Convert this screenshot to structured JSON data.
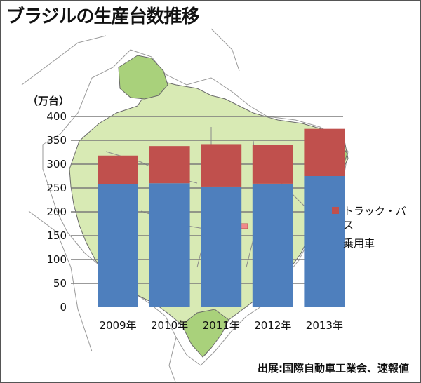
{
  "title": "ブラジルの生産台数推移",
  "source": "出展:国際自動車工業会、速報値",
  "chart_data": {
    "type": "bar",
    "stacked": true,
    "categories": [
      "2009年",
      "2010年",
      "2011年",
      "2012年",
      "2013年"
    ],
    "series": [
      {
        "name": "乗用車",
        "values": [
          258,
          260,
          253,
          259,
          275
        ],
        "color": "#4e7fbd"
      },
      {
        "name": "トラック・バス",
        "values": [
          60,
          78,
          89,
          81,
          99
        ],
        "color": "#c0504d"
      }
    ],
    "ylabel": "（万台）",
    "ylim": [
      0,
      400
    ],
    "yticks": [
      0,
      50,
      100,
      150,
      200,
      250,
      300,
      350,
      400
    ],
    "grid": true,
    "legend": "right"
  },
  "background": {
    "map_fill": "#d8eab4",
    "map_fill_dark": "#a9d17b",
    "map_stroke": "#6a6a6a"
  }
}
